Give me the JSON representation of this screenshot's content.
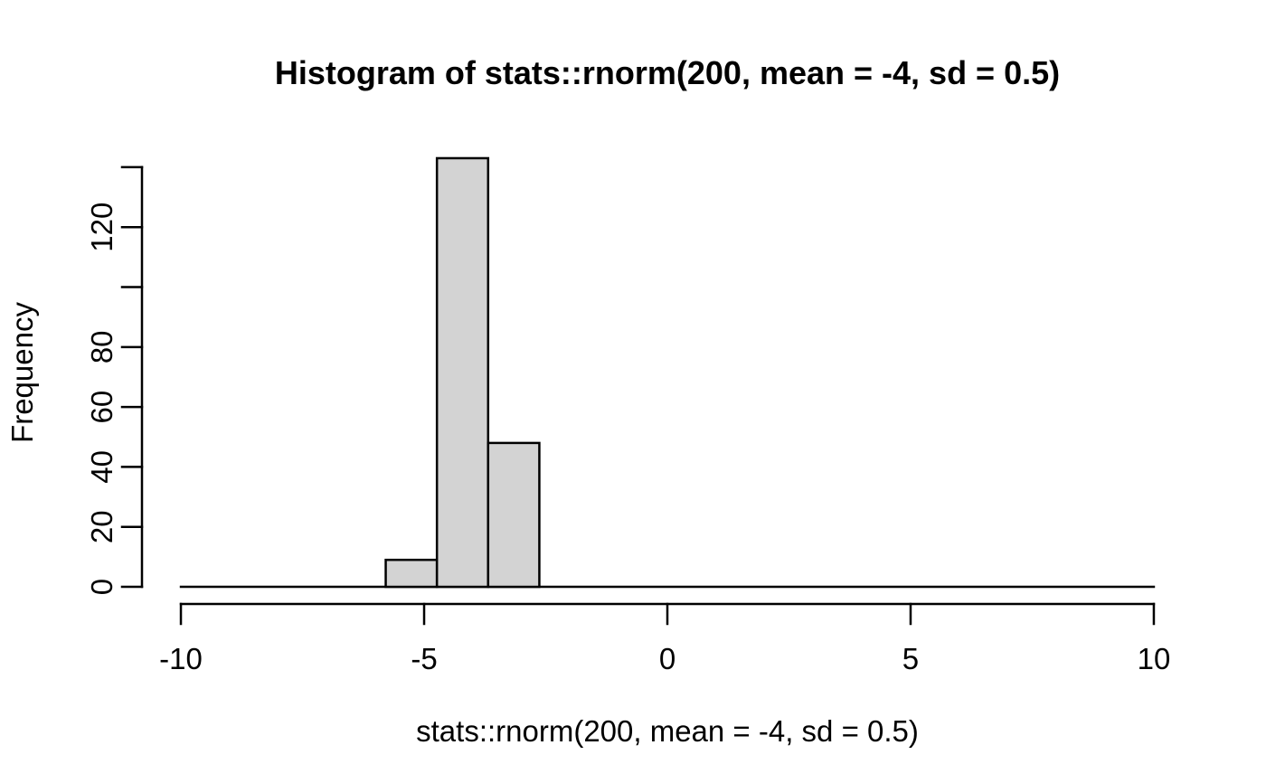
{
  "chart_data": {
    "type": "bar",
    "subtype": "histogram",
    "title": "Histogram of stats::rnorm(200, mean = -4, sd = 0.5)",
    "xlabel": "stats::rnorm(200, mean = -4, sd = 0.5)",
    "ylabel": "Frequency",
    "xlim": [
      -10,
      10
    ],
    "ylim": [
      0,
      143
    ],
    "grid": "off",
    "legend": "none",
    "bin_edges": [
      -10,
      -8.9474,
      -7.8947,
      -6.8421,
      -5.7895,
      -4.7368,
      -3.6842,
      -2.6316,
      -1.5789,
      -0.5263,
      0.5263,
      1.5789,
      2.6316,
      3.6842,
      4.7368,
      5.7895,
      6.8421,
      7.8947,
      8.9474,
      10
    ],
    "counts": [
      0,
      0,
      0,
      0,
      9,
      143,
      48,
      0,
      0,
      0,
      0,
      0,
      0,
      0,
      0,
      0,
      0,
      0,
      0
    ],
    "x_ticks": [
      {
        "value": -10,
        "label": "-10"
      },
      {
        "value": -5,
        "label": "-5"
      },
      {
        "value": 0,
        "label": "0"
      },
      {
        "value": 5,
        "label": "5"
      },
      {
        "value": 10,
        "label": "10"
      }
    ],
    "y_ticks": [
      {
        "value": 0,
        "label": "0"
      },
      {
        "value": 20,
        "label": "20"
      },
      {
        "value": 40,
        "label": "40"
      },
      {
        "value": 60,
        "label": "60"
      },
      {
        "value": 80,
        "label": "80"
      },
      {
        "value": 100,
        "label": ""
      },
      {
        "value": 120,
        "label": "120"
      },
      {
        "value": 140,
        "label": ""
      }
    ],
    "colors": {
      "bar_fill": "#D3D3D3",
      "bar_stroke": "#000000",
      "axis": "#000000",
      "text": "#000000",
      "background": "#FFFFFF"
    }
  }
}
